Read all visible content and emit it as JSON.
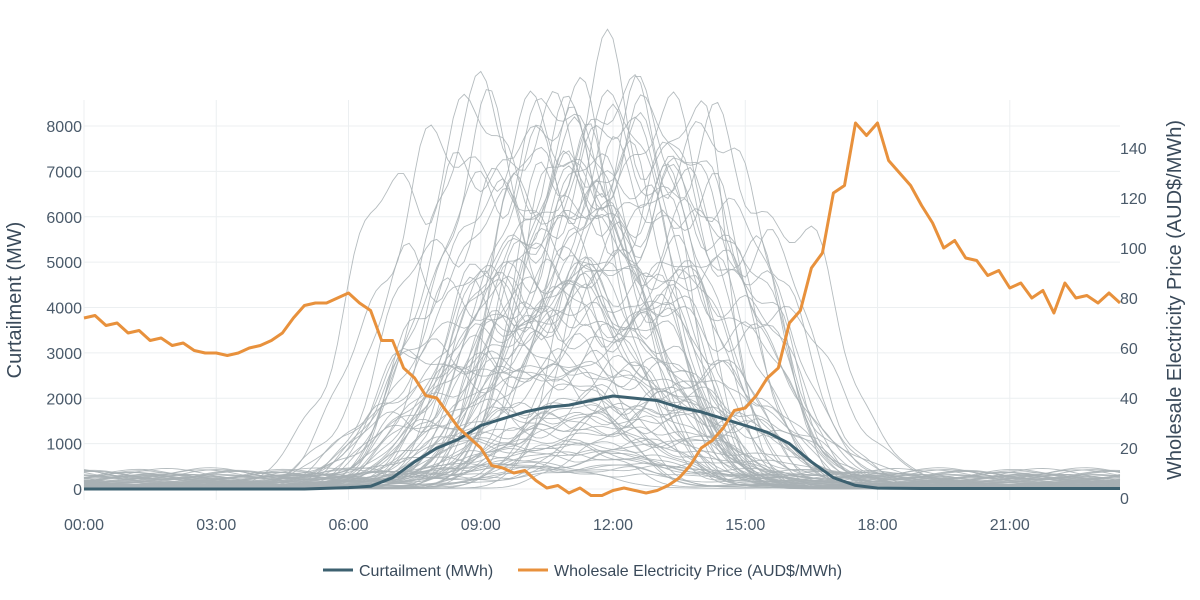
{
  "chart_data": {
    "type": "line",
    "title": "",
    "x_ticks": [
      "00:00",
      "03:00",
      "06:00",
      "09:00",
      "12:00",
      "15:00",
      "18:00",
      "21:00"
    ],
    "x_range_hours": [
      0,
      23.5
    ],
    "y_left": {
      "label": "Curtailment (MW)",
      "range": [
        -200,
        8500
      ],
      "ticks": [
        0,
        1000,
        2000,
        3000,
        4000,
        5000,
        6000,
        7000,
        8000
      ]
    },
    "y_right": {
      "label": "Wholesale Electricity Price (AUD$/MWh)",
      "range": [
        0,
        160
      ],
      "ticks": [
        0,
        20,
        40,
        60,
        80,
        100,
        120,
        140
      ]
    },
    "grid": true,
    "legend_position": "bottom",
    "daily_traces": {
      "description_color": "#a8b0b4",
      "count": 90,
      "note": "grey per-day curtailment profiles (MW); individual values not labeled"
    },
    "series": [
      {
        "name": "Curtailment (MWh)",
        "axis": "left",
        "color": "#3d6170",
        "x": [
          0,
          1,
          2,
          3,
          4,
          5,
          6,
          6.5,
          7,
          7.5,
          8,
          8.5,
          9,
          9.5,
          10,
          10.5,
          11,
          11.5,
          12,
          12.5,
          13,
          13.5,
          14,
          14.5,
          15,
          15.5,
          16,
          16.5,
          17,
          17.5,
          18,
          19,
          20,
          21,
          22,
          23,
          23.5
        ],
        "values": [
          0,
          0,
          0,
          0,
          0,
          0,
          30,
          60,
          250,
          600,
          900,
          1100,
          1400,
          1550,
          1700,
          1800,
          1850,
          1950,
          2050,
          2000,
          1950,
          1800,
          1700,
          1550,
          1400,
          1250,
          1000,
          600,
          250,
          80,
          20,
          10,
          10,
          10,
          10,
          10,
          10
        ]
      },
      {
        "name": "Wholesale Electricity Price (AUD$/MWh)",
        "axis": "right",
        "color": "#e8913c",
        "x": [
          0,
          0.25,
          0.5,
          0.75,
          1,
          1.25,
          1.5,
          1.75,
          2,
          2.25,
          2.5,
          2.75,
          3,
          3.25,
          3.5,
          3.75,
          4,
          4.25,
          4.5,
          4.75,
          5,
          5.25,
          5.5,
          5.75,
          6,
          6.25,
          6.5,
          6.75,
          7,
          7.25,
          7.5,
          7.75,
          8,
          8.25,
          8.5,
          8.75,
          9,
          9.25,
          9.5,
          9.75,
          10,
          10.25,
          10.5,
          10.75,
          11,
          11.25,
          11.5,
          11.75,
          12,
          12.25,
          12.5,
          12.75,
          13,
          13.25,
          13.5,
          13.75,
          14,
          14.25,
          14.5,
          14.75,
          15,
          15.25,
          15.5,
          15.75,
          16,
          16.25,
          16.5,
          16.75,
          17,
          17.25,
          17.5,
          17.75,
          18,
          18.25,
          18.5,
          18.75,
          19,
          19.25,
          19.5,
          19.75,
          20,
          20.25,
          20.5,
          20.75,
          21,
          21.25,
          21.5,
          21.75,
          22,
          22.25,
          22.5,
          22.75,
          23,
          23.25,
          23.5
        ],
        "values": [
          72,
          73,
          69,
          70,
          66,
          67,
          63,
          64,
          61,
          62,
          59,
          58,
          58,
          57,
          58,
          60,
          61,
          63,
          66,
          72,
          77,
          78,
          78,
          80,
          82,
          78,
          75,
          63,
          63,
          52,
          48,
          41,
          40,
          34,
          28,
          24,
          20,
          13,
          12,
          10,
          11,
          7,
          4,
          5,
          2,
          4,
          1,
          1,
          3,
          4,
          3,
          2,
          3,
          5,
          8,
          13,
          20,
          23,
          28,
          35,
          36,
          41,
          48,
          52,
          70,
          75,
          92,
          98,
          122,
          125,
          150,
          145,
          150,
          135,
          130,
          125,
          117,
          110,
          100,
          103,
          96,
          95,
          89,
          91,
          84,
          86,
          80,
          83,
          74,
          86,
          80,
          81,
          78,
          82,
          78
        ]
      }
    ]
  }
}
